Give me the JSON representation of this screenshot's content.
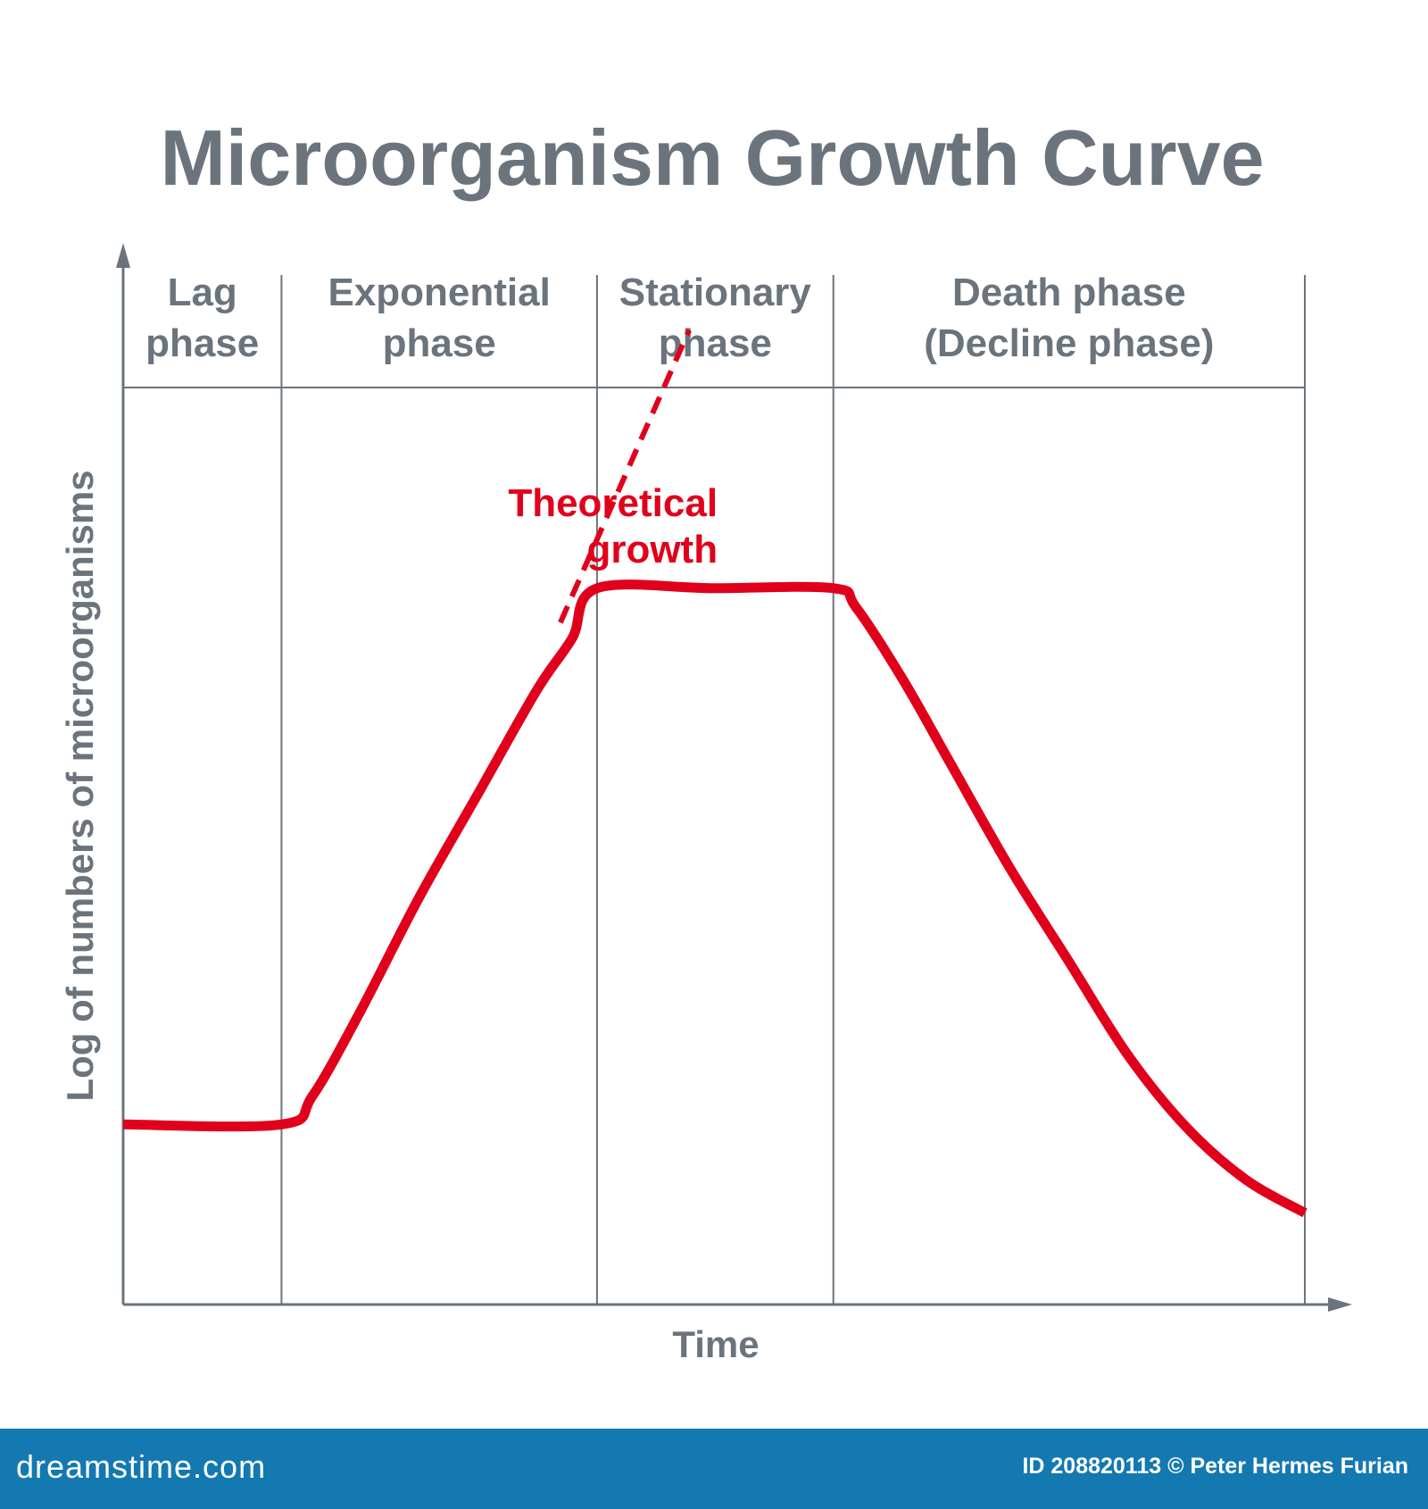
{
  "chart_data": {
    "type": "line",
    "title": "Microorganism Growth Curve",
    "xlabel": "Time",
    "ylabel": "Log of numbers of microorganisms",
    "xlim": [
      0,
      1.0
    ],
    "ylim": [
      0,
      1.0
    ],
    "grid": false,
    "phases": [
      {
        "lines": [
          "Lag",
          "phase"
        ],
        "start": 0.0,
        "end": 0.134
      },
      {
        "lines": [
          "Exponential",
          "phase"
        ],
        "start": 0.134,
        "end": 0.401
      },
      {
        "lines": [
          "Stationary",
          "phase"
        ],
        "start": 0.401,
        "end": 0.601
      },
      {
        "lines": [
          "Death phase",
          "(Decline phase)"
        ],
        "start": 0.601,
        "end": 1.0
      }
    ],
    "series": [
      {
        "color": "#e0001b",
        "style": "solid",
        "x": [
          0.0,
          0.134,
          0.16,
          0.2,
          0.25,
          0.3,
          0.35,
          0.38,
          0.401,
          0.5,
          0.601,
          0.62,
          0.66,
          0.7,
          0.75,
          0.8,
          0.85,
          0.9,
          0.95,
          1.0
        ],
        "y": [
          0.173,
          0.173,
          0.2,
          0.28,
          0.39,
          0.49,
          0.59,
          0.64,
          0.688,
          0.688,
          0.688,
          0.67,
          0.6,
          0.52,
          0.42,
          0.33,
          0.24,
          0.17,
          0.12,
          0.088
        ]
      },
      {
        "name": "Theoretical growth",
        "color": "#e0001b",
        "style": "dashed",
        "x": [
          0.37,
          0.479
        ],
        "y": [
          0.655,
          0.936
        ]
      }
    ],
    "annotations": [
      {
        "lines": [
          "Theoretical",
          "growth"
        ],
        "x": 0.42,
        "y": 0.83
      }
    ]
  },
  "footer": {
    "site": "dreamstime.com",
    "credit": "ID 208820113 © Peter Hermes Furian"
  }
}
